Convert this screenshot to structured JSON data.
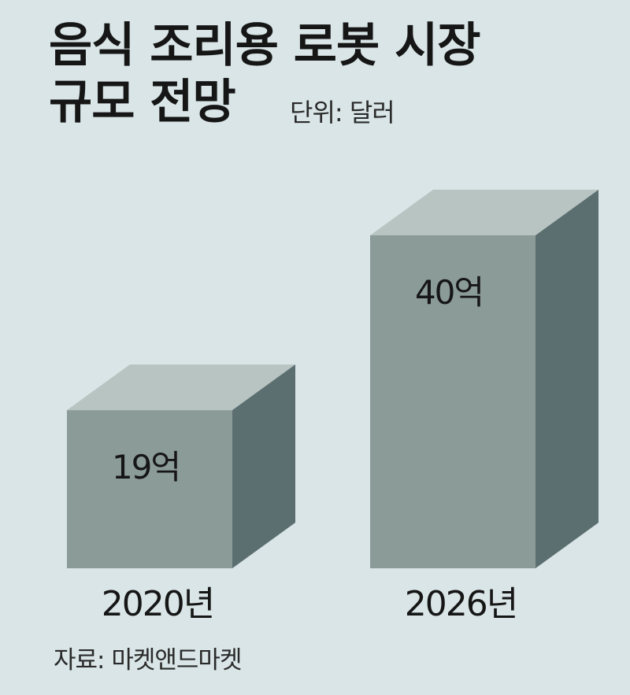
{
  "title_lines": [
    "음식 조리용 로봇 시장",
    "규모 전망"
  ],
  "unit_label": "단위: 달러",
  "source": "자료: 마켓앤드마켓",
  "colors": {
    "background": "#d9e5e6",
    "bar_front": "#8b9b98",
    "bar_top": "#b8c4c2",
    "bar_side": "#5c6f70"
  },
  "chart_data": {
    "type": "bar",
    "title": "음식 조리용 로봇 시장 규모 전망",
    "unit": "단위: 달러",
    "categories": [
      "2020년",
      "2026년"
    ],
    "values": [
      1900000000,
      4000000000
    ],
    "value_labels": [
      "19억",
      "40억"
    ],
    "grid": false,
    "legend": "none"
  }
}
